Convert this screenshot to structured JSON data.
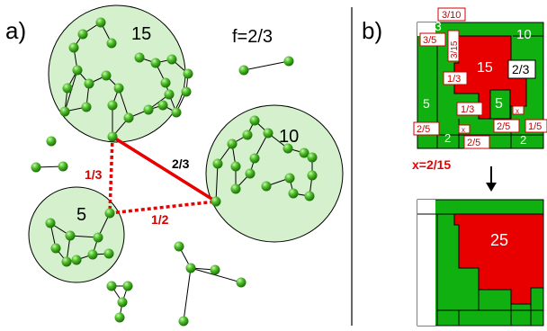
{
  "panel_a": {
    "label": "a)",
    "f_label": "f=2/3",
    "clusters": [
      {
        "size_label": "15"
      },
      {
        "size_label": "10"
      },
      {
        "size_label": "5"
      }
    ],
    "edge_labels": {
      "solid": "2/3",
      "dotted_left": "1/3",
      "dotted_bottom": "1/2"
    }
  },
  "panel_b": {
    "label": "b)",
    "x_label": "x=2/15",
    "top_numbers": [
      "3",
      "10",
      "15",
      "5",
      "5",
      "2",
      "2"
    ],
    "boxes": [
      "3/10",
      "3/5",
      "3/15",
      "2/3",
      "1/3",
      "1/3",
      "x",
      "2/5",
      "2/5",
      "1/5",
      "x",
      "2/5"
    ],
    "merged_label": "25"
  },
  "colors": {
    "cluster_fill": "#d5f0cc",
    "node_green": "#3fae1f",
    "red": "#e80000",
    "green_block": "#10b010"
  }
}
